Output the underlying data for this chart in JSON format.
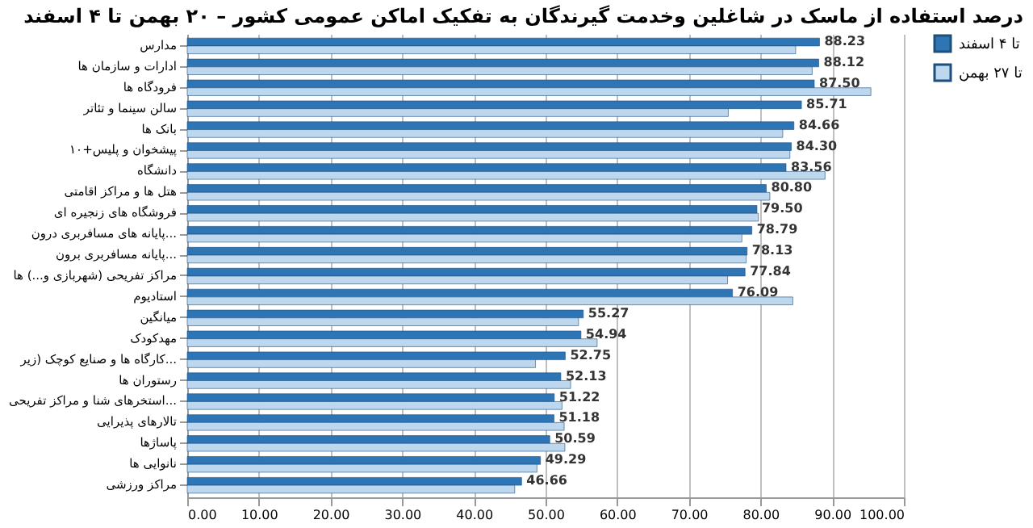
{
  "chart_data": {
    "type": "bar",
    "orientation": "horizontal",
    "title": "درصد استفاده از ماسک در شاغلین وخدمت گیرندگان به تفکیک اماکن عمومی کشور  – ۲۰ بهمن تا ۴ اسفند",
    "categories": [
      "مدارس",
      "ادارات و سازمان ها",
      "فرودگاه ها",
      "سالن سینما و تئاتر",
      "بانک ها",
      "پیشخوان و پلیس+۱۰",
      "دانشگاه",
      "هتل ها و مراکز اقامتی",
      "فروشگاه های زنجیره ای",
      "پایانه های مسافربری درون...",
      "پایانه مسافربری برون...",
      "مراکز تفریحی (شهربازی و...) ها",
      "استادیوم",
      "میانگین",
      "مهدکودک",
      "کارگاه ها و صنایع کوچک (زیر...",
      "رستوران ها",
      "استخرهای شنا و مراکز تفریحی...",
      "تالارهای پذیرایی",
      "پاساژها",
      "نانوایی ها",
      "مراکز ورزشی"
    ],
    "series": [
      {
        "name": "تا ۴ اسفند",
        "color": "#2e75b6",
        "values": [
          88.23,
          88.12,
          87.5,
          85.71,
          84.66,
          84.3,
          83.56,
          80.8,
          79.5,
          78.79,
          78.13,
          77.84,
          76.09,
          55.27,
          54.94,
          52.75,
          52.13,
          51.22,
          51.18,
          50.59,
          49.29,
          46.66
        ],
        "value_labels": [
          "88.23",
          "88.12",
          "87.50",
          "85.71",
          "84.66",
          "84.30",
          "83.56",
          "80.80",
          "79.50",
          "78.79",
          "78.13",
          "77.84",
          "76.09",
          "55.27",
          "54.94",
          "52.75",
          "52.13",
          "51.22",
          "51.18",
          "50.59",
          "49.29",
          "46.66"
        ]
      },
      {
        "name": "تا ۲۷ بهمن",
        "color": "#bdd7ee",
        "values": [
          84.9,
          87.2,
          95.4,
          75.5,
          83.1,
          84.1,
          89.0,
          81.3,
          79.7,
          77.4,
          78.0,
          75.4,
          84.5,
          54.6,
          57.2,
          48.6,
          53.5,
          52.3,
          52.6,
          52.7,
          48.8,
          45.7
        ]
      }
    ],
    "xlim": [
      0,
      100
    ],
    "xticks": [
      {
        "value": 0,
        "label": "0.00"
      },
      {
        "value": 10,
        "label": "10.00"
      },
      {
        "value": 20,
        "label": "20.00"
      },
      {
        "value": 30,
        "label": "30.00"
      },
      {
        "value": 40,
        "label": "40.00"
      },
      {
        "value": 50,
        "label": "50.00"
      },
      {
        "value": 60,
        "label": "60.00"
      },
      {
        "value": 70,
        "label": "70.00"
      },
      {
        "value": 80,
        "label": "80.00"
      },
      {
        "value": 90,
        "label": "90.00"
      },
      {
        "value": 100,
        "label": "100.00"
      }
    ],
    "grid": "x",
    "legend": "right"
  }
}
